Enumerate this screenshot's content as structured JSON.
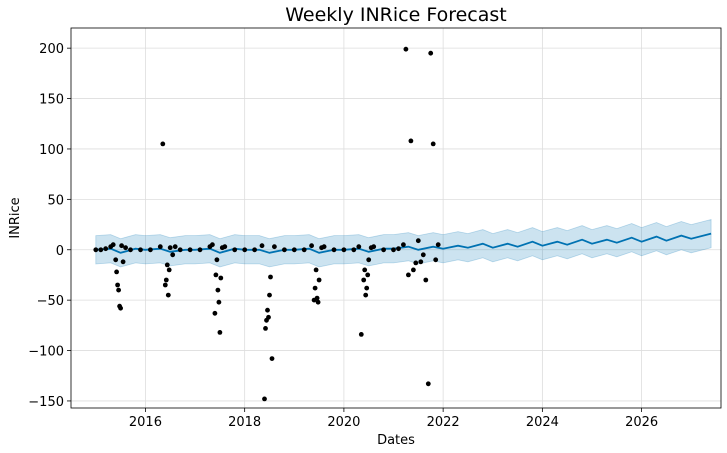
{
  "chart_data": {
    "type": "line",
    "title": "Weekly INRice Forecast",
    "xlabel": "Dates",
    "ylabel": "INRice",
    "xlim": [
      2014.5,
      2027.6
    ],
    "ylim": [
      -157,
      220
    ],
    "grid": true,
    "x_ticks": [
      2016,
      2018,
      2020,
      2022,
      2024,
      2026
    ],
    "x_tick_labels": [
      "2016",
      "2018",
      "2020",
      "2022",
      "2024",
      "2026"
    ],
    "y_ticks": [
      -150,
      -100,
      -50,
      0,
      50,
      100,
      150,
      200
    ],
    "y_tick_labels": [
      "−150",
      "−100",
      "−50",
      "0",
      "50",
      "100",
      "150",
      "200"
    ],
    "colors": {
      "forecast": "#0072B2",
      "interval": "#0072B2",
      "observed": "#000000",
      "grid": "#dddddd"
    },
    "series": [
      {
        "kind": "forecast",
        "x": [
          2015.0,
          2015.3,
          2015.5,
          2015.8,
          2016.0,
          2016.3,
          2016.5,
          2016.8,
          2017.0,
          2017.3,
          2017.5,
          2017.8,
          2018.0,
          2018.3,
          2018.5,
          2018.8,
          2019.0,
          2019.3,
          2019.5,
          2019.8,
          2020.0,
          2020.3,
          2020.5,
          2020.8,
          2021.0,
          2021.3,
          2021.5,
          2021.8,
          2022.0,
          2022.3,
          2022.5,
          2022.8,
          2023.0,
          2023.3,
          2023.5,
          2023.8,
          2024.0,
          2024.3,
          2024.5,
          2024.8,
          2025.0,
          2025.3,
          2025.5,
          2025.8,
          2026.0,
          2026.3,
          2026.5,
          2026.8,
          2027.0,
          2027.4
        ],
        "y": [
          0,
          1,
          -3,
          1,
          0,
          1,
          -2,
          0,
          0,
          1,
          -3,
          1,
          0,
          0,
          -3,
          0,
          0,
          1,
          -3,
          0,
          0,
          1,
          -2,
          1,
          1,
          3,
          0,
          3,
          1,
          4,
          2,
          6,
          2,
          6,
          3,
          8,
          4,
          8,
          5,
          10,
          6,
          10,
          7,
          12,
          8,
          13,
          9,
          14,
          11,
          16
        ],
        "lower": [
          -14,
          -13,
          -17,
          -13,
          -14,
          -13,
          -16,
          -14,
          -14,
          -13,
          -17,
          -13,
          -14,
          -14,
          -17,
          -14,
          -14,
          -13,
          -17,
          -14,
          -14,
          -13,
          -16,
          -13,
          -13,
          -11,
          -14,
          -11,
          -13,
          -10,
          -12,
          -8,
          -12,
          -8,
          -11,
          -6,
          -10,
          -6,
          -9,
          -4,
          -8,
          -4,
          -7,
          -2,
          -6,
          -1,
          -5,
          0,
          -3,
          2
        ],
        "upper": [
          14,
          15,
          11,
          15,
          14,
          15,
          12,
          14,
          14,
          15,
          11,
          15,
          14,
          14,
          11,
          14,
          14,
          15,
          11,
          14,
          14,
          15,
          12,
          15,
          15,
          17,
          14,
          17,
          15,
          18,
          16,
          20,
          16,
          20,
          17,
          22,
          18,
          22,
          19,
          24,
          20,
          24,
          21,
          26,
          22,
          27,
          23,
          28,
          25,
          30
        ]
      },
      {
        "kind": "observed",
        "x": [
          2015.0,
          2015.1,
          2015.2,
          2015.3,
          2015.35,
          2015.4,
          2015.42,
          2015.44,
          2015.46,
          2015.48,
          2015.5,
          2015.52,
          2015.55,
          2015.6,
          2015.7,
          2015.9,
          2016.1,
          2016.3,
          2016.35,
          2016.4,
          2016.42,
          2016.44,
          2016.46,
          2016.48,
          2016.5,
          2016.55,
          2016.6,
          2016.7,
          2016.9,
          2017.1,
          2017.3,
          2017.35,
          2017.4,
          2017.42,
          2017.44,
          2017.46,
          2017.48,
          2017.5,
          2017.52,
          2017.55,
          2017.6,
          2017.8,
          2018.0,
          2018.2,
          2018.35,
          2018.4,
          2018.42,
          2018.44,
          2018.46,
          2018.48,
          2018.5,
          2018.52,
          2018.55,
          2018.6,
          2018.8,
          2019.0,
          2019.2,
          2019.35,
          2019.4,
          2019.42,
          2019.44,
          2019.46,
          2019.48,
          2019.5,
          2019.55,
          2019.6,
          2019.8,
          2020.0,
          2020.2,
          2020.3,
          2020.35,
          2020.4,
          2020.42,
          2020.44,
          2020.46,
          2020.48,
          2020.5,
          2020.55,
          2020.6,
          2020.8,
          2021.0,
          2021.1,
          2021.2,
          2021.25,
          2021.3,
          2021.35,
          2021.4,
          2021.45,
          2021.5,
          2021.55,
          2021.6,
          2021.65,
          2021.7,
          2021.75,
          2021.8,
          2021.85,
          2021.9
        ],
        "y": [
          0,
          0,
          1,
          3,
          5,
          -10,
          -22,
          -35,
          -40,
          -56,
          -58,
          4,
          -12,
          2,
          0,
          0,
          0,
          3,
          105,
          -35,
          -30,
          -15,
          -45,
          -20,
          2,
          -5,
          3,
          0,
          0,
          0,
          3,
          5,
          -63,
          -25,
          -10,
          -40,
          -52,
          -82,
          -28,
          2,
          3,
          0,
          0,
          0,
          4,
          -148,
          -78,
          -70,
          -60,
          -67,
          -45,
          -27,
          -108,
          3,
          0,
          0,
          0,
          4,
          -50,
          -38,
          -20,
          -48,
          -52,
          -30,
          2,
          3,
          0,
          0,
          0,
          3,
          -84,
          -30,
          -20,
          -45,
          -38,
          -25,
          -10,
          2,
          3,
          0,
          0,
          1,
          5,
          199,
          -25,
          108,
          -20,
          -13,
          9,
          -12,
          -5,
          -30,
          -133,
          195,
          105,
          -10,
          5
        ]
      }
    ]
  }
}
